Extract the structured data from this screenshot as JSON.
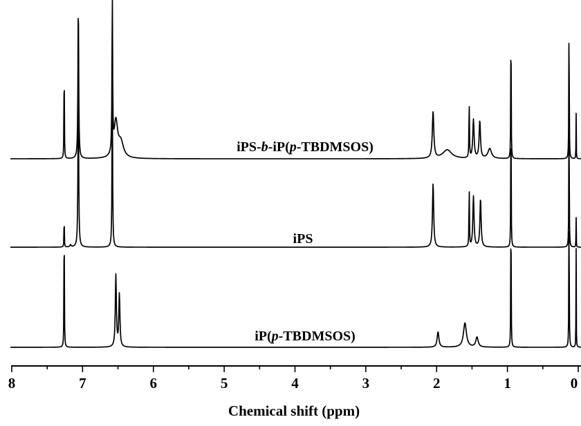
{
  "chart_data": {
    "type": "line",
    "title": "",
    "xlabel": "Chemical shift (ppm)",
    "ylabel": "",
    "x_reversed": true,
    "xlim": [
      8,
      0
    ],
    "major_ticks": [
      8,
      7,
      6,
      5,
      4,
      3,
      2,
      1,
      0
    ],
    "tick_labels": [
      "8",
      "7",
      "6",
      "5",
      "4",
      "3",
      "2",
      "1",
      "0"
    ],
    "grid": false,
    "series": [
      {
        "name": "iPS-b-iP(p-TBDMSOS)",
        "label_parts": [
          {
            "text": "iPS-",
            "style": "normal"
          },
          {
            "text": "b",
            "style": "italic"
          },
          {
            "text": "-iP(",
            "style": "normal"
          },
          {
            "text": "p",
            "style": "italic"
          },
          {
            "text": "-TBDMSOS)",
            "style": "normal"
          }
        ],
        "peaks": [
          {
            "ppm": 7.26,
            "height": 1.0,
            "width": 0.006
          },
          {
            "ppm": 7.06,
            "height": 1.45,
            "width": 0.012
          },
          {
            "ppm": 6.58,
            "height": 1.45,
            "width": 0.01
          },
          {
            "ppm": 6.53,
            "height": 0.32,
            "width": 0.06
          },
          {
            "ppm": 6.46,
            "height": 0.14,
            "width": 0.09
          },
          {
            "ppm": 2.05,
            "height": 0.42,
            "width": 0.025
          },
          {
            "ppm": 1.85,
            "height": 0.08,
            "width": 0.15
          },
          {
            "ppm": 1.54,
            "height": 0.52,
            "width": 0.008
          },
          {
            "ppm": 1.48,
            "height": 0.35,
            "width": 0.022
          },
          {
            "ppm": 1.39,
            "height": 0.34,
            "width": 0.022
          },
          {
            "ppm": 1.25,
            "height": 0.09,
            "width": 0.06
          },
          {
            "ppm": 0.95,
            "height": 1.45,
            "width": 0.006
          },
          {
            "ppm": 0.13,
            "height": 1.45,
            "width": 0.006
          },
          {
            "ppm": 0.03,
            "height": 0.46,
            "width": 0.004
          }
        ]
      },
      {
        "name": "iPS",
        "label_parts": [
          {
            "text": "iPS",
            "style": "normal"
          }
        ],
        "peaks": [
          {
            "ppm": 7.26,
            "height": 0.35,
            "width": 0.005
          },
          {
            "ppm": 7.17,
            "height": 0.02,
            "width": 0.02
          },
          {
            "ppm": 7.06,
            "height": 1.45,
            "width": 0.012
          },
          {
            "ppm": 6.58,
            "height": 1.45,
            "width": 0.01
          },
          {
            "ppm": 2.05,
            "height": 0.58,
            "width": 0.02
          },
          {
            "ppm": 1.54,
            "height": 0.58,
            "width": 0.007
          },
          {
            "ppm": 1.48,
            "height": 0.46,
            "width": 0.02
          },
          {
            "ppm": 1.38,
            "height": 0.44,
            "width": 0.02
          },
          {
            "ppm": 0.95,
            "height": 1.45,
            "width": 0.006
          },
          {
            "ppm": 0.13,
            "height": 1.45,
            "width": 0.006
          },
          {
            "ppm": 0.03,
            "height": 0.3,
            "width": 0.004
          }
        ]
      },
      {
        "name": "iP(p-TBDMSOS)",
        "label_parts": [
          {
            "text": "iP(",
            "style": "normal"
          },
          {
            "text": "p",
            "style": "italic"
          },
          {
            "text": "-TBDMSOS)",
            "style": "normal"
          }
        ],
        "peaks": [
          {
            "ppm": 7.26,
            "height": 1.35,
            "width": 0.006
          },
          {
            "ppm": 6.53,
            "height": 0.65,
            "width": 0.018
          },
          {
            "ppm": 6.48,
            "height": 0.48,
            "width": 0.018
          },
          {
            "ppm": 1.98,
            "height": 0.14,
            "width": 0.03
          },
          {
            "ppm": 1.6,
            "height": 0.22,
            "width": 0.05
          },
          {
            "ppm": 1.43,
            "height": 0.09,
            "width": 0.04
          },
          {
            "ppm": 0.95,
            "height": 1.45,
            "width": 0.006
          },
          {
            "ppm": 0.13,
            "height": 1.45,
            "width": 0.006
          },
          {
            "ppm": 0.03,
            "height": 1.0,
            "width": 0.004
          }
        ]
      }
    ]
  }
}
